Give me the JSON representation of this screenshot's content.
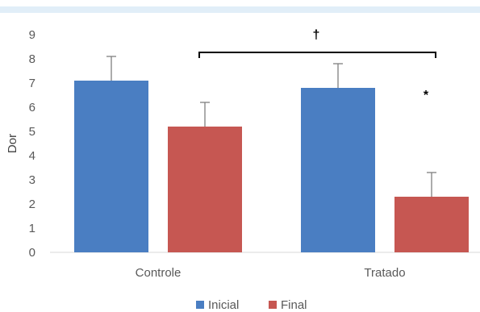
{
  "chart_data": {
    "type": "bar",
    "ylabel": "Dor",
    "xlabel": "",
    "ylim": [
      0,
      9
    ],
    "yticks": [
      0,
      1,
      2,
      3,
      4,
      5,
      6,
      7,
      8,
      9
    ],
    "grid": false,
    "legend_position": "bottom",
    "categories": [
      "Controle",
      "Tratado"
    ],
    "series": [
      {
        "name": "Inicial",
        "color": "#4a7ec2",
        "values": [
          7.1,
          6.8
        ],
        "error": [
          1.0,
          1.0
        ]
      },
      {
        "name": "Final",
        "color": "#c65752",
        "values": [
          5.2,
          2.3
        ],
        "error": [
          1.0,
          1.0
        ]
      }
    ],
    "annotations": {
      "bracket_label": "†",
      "star_label": "*"
    }
  }
}
